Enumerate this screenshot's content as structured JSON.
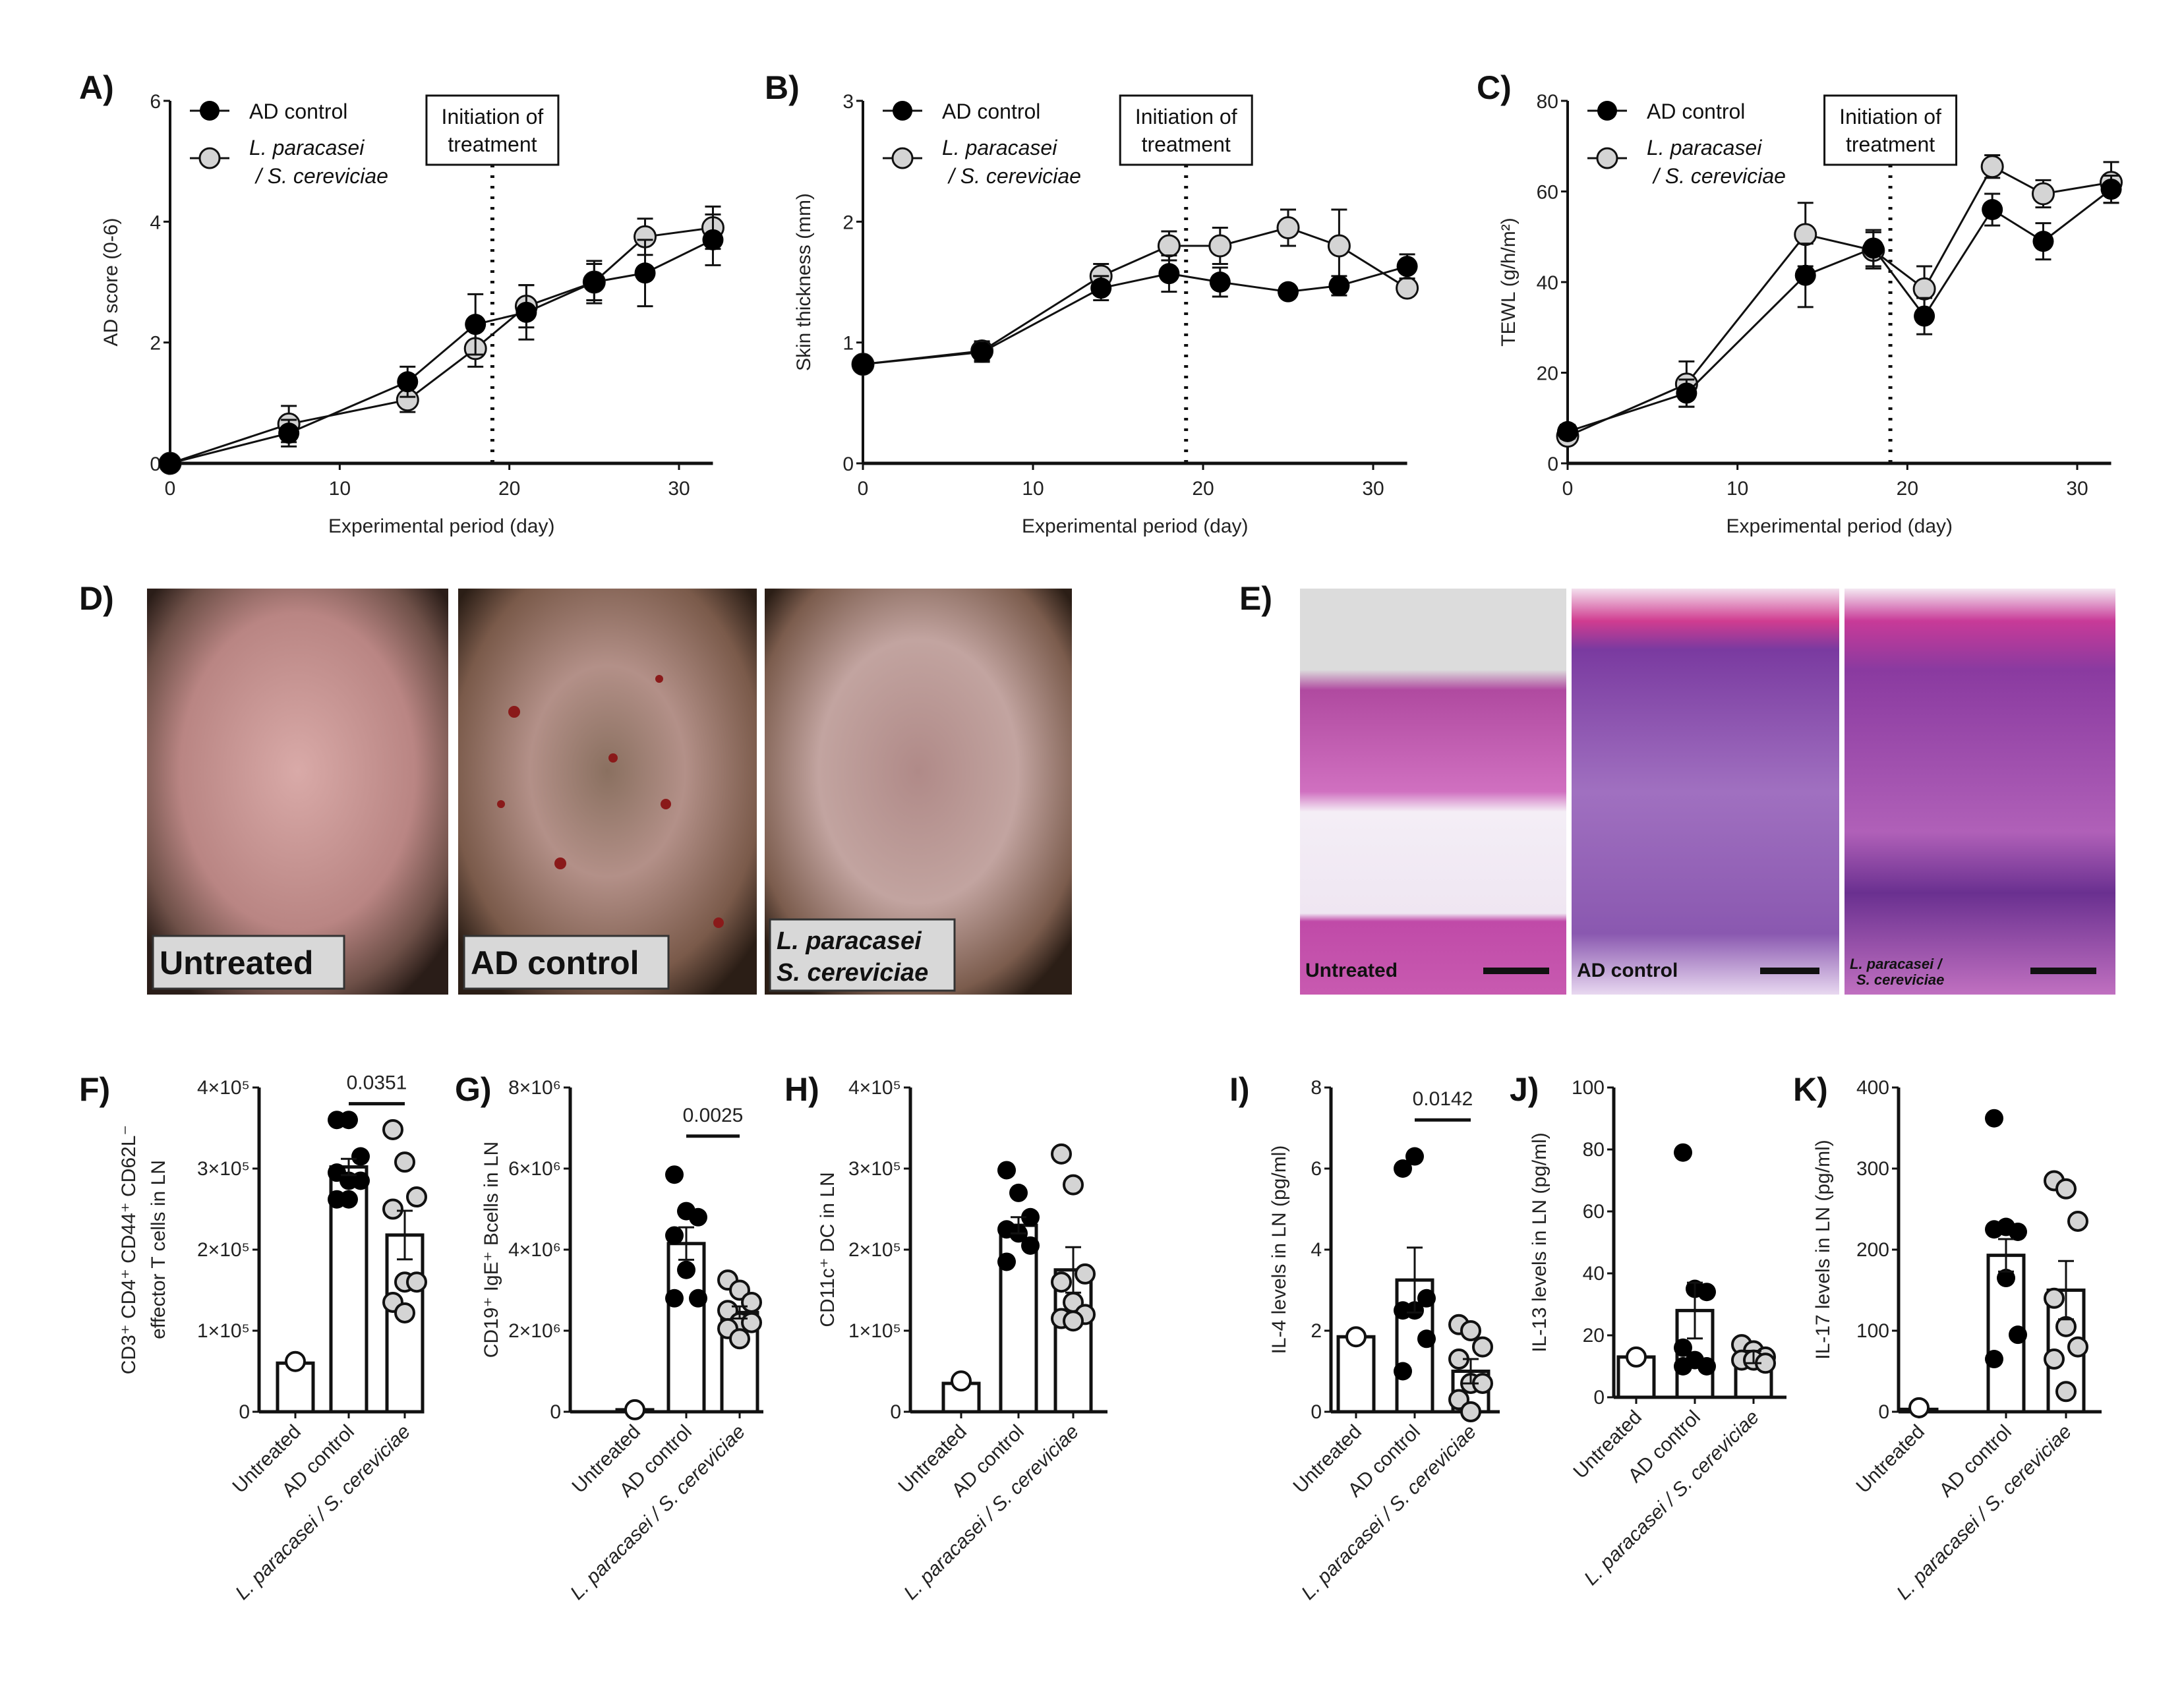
{
  "panel_labels": [
    "A)",
    "B)",
    "C)",
    "D)",
    "E)",
    "F)",
    "G)",
    "H)",
    "I)",
    "J)",
    "K)"
  ],
  "legend": {
    "ad": "AD control",
    "lp_line1": "L. paracasei",
    "lp_line2": "/ S. cereviciae"
  },
  "treatment_box": {
    "line1": "Initiation of",
    "line2": "treatment",
    "day": 19
  },
  "colors": {
    "ad": "#000000",
    "lp": "#d4d4d4",
    "untreated": "#ffffff"
  },
  "chart_data": [
    {
      "id": "A",
      "type": "line",
      "xlabel": "Experimental period (day)",
      "ylabel": "AD score (0-6)",
      "xlim": [
        0,
        32
      ],
      "ylim": [
        0,
        6
      ],
      "xticks": [
        0,
        10,
        20,
        30
      ],
      "yticks": [
        0,
        2,
        4,
        6
      ],
      "x": [
        0,
        7,
        14,
        18,
        21,
        25,
        28,
        32
      ],
      "series": [
        {
          "name": "AD control",
          "values": [
            0,
            0.5,
            1.35,
            2.3,
            2.5,
            3.0,
            3.15,
            3.7
          ],
          "error": [
            0.05,
            0.22,
            0.25,
            0.5,
            0.45,
            0.35,
            0.55,
            0.42
          ]
        },
        {
          "name": "L. paracasei / S. cereviciae",
          "values": [
            0,
            0.65,
            1.05,
            1.9,
            2.6,
            3.0,
            3.75,
            3.9
          ],
          "error": [
            0.05,
            0.3,
            0.2,
            0.3,
            0.35,
            0.3,
            0.3,
            0.35
          ]
        }
      ]
    },
    {
      "id": "B",
      "type": "line",
      "xlabel": "Experimental period (day)",
      "ylabel": "Skin thickness (mm)",
      "xlim": [
        0,
        32
      ],
      "ylim": [
        0,
        3
      ],
      "xticks": [
        0,
        10,
        20,
        30
      ],
      "yticks": [
        0,
        1,
        2,
        3
      ],
      "x": [
        0,
        7,
        14,
        18,
        21,
        25,
        28,
        32
      ],
      "series": [
        {
          "name": "AD control",
          "values": [
            0.82,
            0.92,
            1.45,
            1.57,
            1.5,
            1.42,
            1.47,
            1.63
          ],
          "error": [
            0.03,
            0.08,
            0.1,
            0.15,
            0.12,
            0.03,
            0.08,
            0.1
          ]
        },
        {
          "name": "L. paracasei / S. cereviciae",
          "values": [
            0.82,
            0.93,
            1.55,
            1.8,
            1.8,
            1.95,
            1.8,
            1.45
          ],
          "error": [
            0.03,
            0.08,
            0.1,
            0.12,
            0.15,
            0.15,
            0.3,
            0.05
          ]
        }
      ]
    },
    {
      "id": "C",
      "type": "line",
      "xlabel": "Experimental period (day)",
      "ylabel": "TEWL (g/h/m²)",
      "xlim": [
        0,
        32
      ],
      "ylim": [
        0,
        80
      ],
      "xticks": [
        0,
        10,
        20,
        30
      ],
      "yticks": [
        0,
        20,
        40,
        60,
        80
      ],
      "x": [
        0,
        7,
        14,
        18,
        21,
        25,
        28,
        32
      ],
      "series": [
        {
          "name": "AD control",
          "values": [
            7,
            15.5,
            41.5,
            47.5,
            32.5,
            56,
            49,
            60.5
          ],
          "error": [
            1.5,
            3,
            7,
            4,
            4,
            3.5,
            4,
            3
          ]
        },
        {
          "name": "L. paracasei / S. cereviciae",
          "values": [
            6,
            17.5,
            50.5,
            47,
            38.5,
            65.5,
            59.5,
            62
          ],
          "error": [
            1.5,
            5,
            7,
            4,
            5,
            2.5,
            3,
            4.5
          ]
        }
      ]
    },
    {
      "id": "F",
      "type": "bar",
      "ylabel_line1": "CD3⁺ CD4⁺ CD44⁺ CD62L⁻",
      "ylabel_line2": "effector T cells in LN",
      "ylim": [
        0,
        400000
      ],
      "yticks": [
        0,
        100000,
        200000,
        300000,
        400000
      ],
      "ytick_labels": [
        "0",
        "1×10⁵",
        "2×10⁵",
        "3×10⁵",
        "4×10⁵"
      ],
      "categories": [
        "Untreated",
        "AD control",
        "L. paracasei / S. cereviciae"
      ],
      "means": [
        60000,
        302000,
        218000
      ],
      "sem": [
        0,
        10000,
        30000
      ],
      "points": [
        [
          62000
        ],
        [
          360000,
          360000,
          315000,
          295000,
          285000,
          285000,
          262000,
          262000
        ],
        [
          348000,
          308000,
          265000,
          250000,
          160000,
          160000,
          135000,
          122000
        ]
      ],
      "significance": {
        "label": "0.0351",
        "between": [
          1,
          2
        ],
        "y": 380000
      }
    },
    {
      "id": "G",
      "type": "bar",
      "ylabel_line1": "CD19⁺ IgE⁺ Bcells in LN",
      "ylim": [
        0,
        8000000
      ],
      "yticks": [
        0,
        2000000,
        4000000,
        6000000,
        8000000
      ],
      "ytick_labels": [
        "0",
        "2×10⁶",
        "4×10⁶",
        "6×10⁶",
        "8×10⁶"
      ],
      "categories": [
        "Untreated",
        "AD control",
        "L. paracasei / S. cereviciae"
      ],
      "means": [
        50000,
        4150000,
        2450000
      ],
      "sem": [
        0,
        400000,
        150000
      ],
      "points": [
        [
          50000
        ],
        [
          5850000,
          4950000,
          4800000,
          4350000,
          3500000,
          2800000,
          2800000
        ],
        [
          3250000,
          3000000,
          2700000,
          2500000,
          2200000,
          2200000,
          2050000,
          1800000
        ]
      ],
      "significance": {
        "label": "0.0025",
        "between": [
          1,
          2
        ],
        "y": 6800000
      }
    },
    {
      "id": "H",
      "type": "bar",
      "ylabel_line1": "CD11c⁺ DC in LN",
      "ylim": [
        0,
        400000
      ],
      "yticks": [
        0,
        100000,
        200000,
        300000,
        400000
      ],
      "ytick_labels": [
        "0",
        "1×10⁵",
        "2×10⁵",
        "3×10⁵",
        "4×10⁵"
      ],
      "categories": [
        "Untreated",
        "AD control",
        "L. paracasei / S. cereviciae"
      ],
      "means": [
        35000,
        230000,
        175000
      ],
      "sem": [
        0,
        10000,
        28000
      ],
      "points": [
        [
          38000
        ],
        [
          298000,
          270000,
          240000,
          225000,
          220000,
          205000,
          185000
        ],
        [
          318000,
          280000,
          170000,
          160000,
          135000,
          120000,
          115000,
          112000
        ]
      ]
    },
    {
      "id": "I",
      "type": "bar",
      "ylabel_line1": "IL-4 levels in LN (pg/ml)",
      "ylim": [
        0,
        8
      ],
      "yticks": [
        0,
        2,
        4,
        6,
        8
      ],
      "ytick_labels": [
        "0",
        "2",
        "4",
        "6",
        "8"
      ],
      "categories": [
        "Untreated",
        "AD control",
        "L. paracasei / S. cereviciae"
      ],
      "means": [
        1.85,
        3.25,
        1.0
      ],
      "sem": [
        0,
        0.8,
        0.3
      ],
      "points": [
        [
          1.85
        ],
        [
          6.0,
          6.3,
          2.8,
          2.5,
          2.5,
          1.8,
          1.0
        ],
        [
          2.15,
          2.0,
          1.6,
          1.3,
          0.7,
          0.7,
          0.3,
          0.0
        ]
      ],
      "significance": {
        "label": "0.0142",
        "between": [
          1,
          2
        ],
        "y": 7.2
      }
    },
    {
      "id": "J",
      "type": "bar",
      "ylabel_line1": "IL-13 levels in LN (pg/ml)",
      "ylim": [
        0,
        100
      ],
      "yticks": [
        0,
        20,
        40,
        60,
        80,
        100
      ],
      "ytick_labels": [
        "0",
        "20",
        "40",
        "60",
        "80",
        "100"
      ],
      "categories": [
        "Untreated",
        "AD control",
        "L. paracasei / S. cereviciae"
      ],
      "means": [
        13,
        28,
        13
      ],
      "sem": [
        0,
        9,
        2
      ],
      "points": [
        [
          13
        ],
        [
          79,
          35,
          34,
          16,
          12,
          10,
          10
        ],
        [
          17,
          15,
          13,
          12,
          12,
          11
        ]
      ]
    },
    {
      "id": "K",
      "type": "bar",
      "ylabel_line1": "IL-17 levels in LN (pg/ml)",
      "ylim": [
        0,
        400
      ],
      "yticks": [
        0,
        100,
        200,
        300,
        400
      ],
      "ytick_labels": [
        "0",
        "100",
        "200",
        "300",
        "400"
      ],
      "categories": [
        "Untreated",
        "AD control",
        "L. paracasei / S. cereviciae"
      ],
      "means": [
        3,
        193,
        150
      ],
      "sem": [
        0,
        20,
        36
      ],
      "points": [
        [
          5
        ],
        [
          362,
          228,
          222,
          225,
          165,
          95,
          65
        ],
        [
          285,
          275,
          235,
          140,
          105,
          80,
          65,
          25
        ]
      ]
    }
  ],
  "photos_d": [
    {
      "label_line1": "Untreated"
    },
    {
      "label_line1": "AD control"
    },
    {
      "label_line1": "L. paracasei",
      "label_line2": "S. cereviciae"
    }
  ],
  "histology_e": [
    {
      "label": "Untreated"
    },
    {
      "label": "AD control"
    },
    {
      "label_line1": "L. paracasei /",
      "label_line2": "S. cereviciae"
    }
  ]
}
